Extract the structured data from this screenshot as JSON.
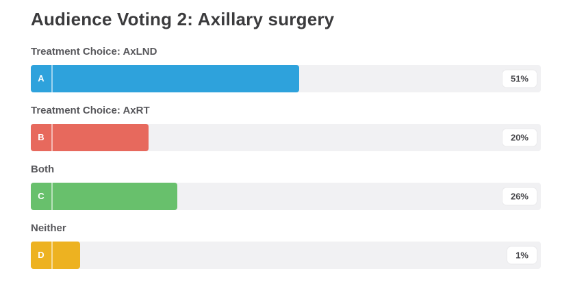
{
  "page": {
    "title": "Audience Voting 2: Axillary surgery"
  },
  "options": [
    {
      "letter": "A",
      "label": "Treatment Choice: AxLND",
      "value": 51,
      "display": "51%",
      "color": "#2ea2dc"
    },
    {
      "letter": "B",
      "label": "Treatment Choice: AxRT",
      "value": 20,
      "display": "20%",
      "color": "#e7695d"
    },
    {
      "letter": "C",
      "label": "Both",
      "value": 26,
      "display": "26%",
      "color": "#68c06c"
    },
    {
      "letter": "D",
      "label": "Neither",
      "value": 1,
      "display": "1%",
      "color": "#edb221"
    }
  ],
  "theme": {
    "track_color": "#f1f1f3",
    "title_color": "#3b3b3d",
    "label_color": "#57575b",
    "pill_background": "#ffffff"
  },
  "chart_data": {
    "type": "bar",
    "orientation": "horizontal",
    "title": "Audience Voting 2: Axillary surgery",
    "categories": [
      "Treatment Choice: AxLND",
      "Treatment Choice: AxRT",
      "Both",
      "Neither"
    ],
    "series_letters": [
      "A",
      "B",
      "C",
      "D"
    ],
    "values": [
      51,
      20,
      26,
      1
    ],
    "value_labels": [
      "51%",
      "20%",
      "26%",
      "1%"
    ],
    "value_suffix": "%",
    "colors": [
      "#2ea2dc",
      "#e7695d",
      "#68c06c",
      "#edb221"
    ],
    "xlim": [
      0,
      100
    ],
    "grid": false,
    "legend": false
  }
}
